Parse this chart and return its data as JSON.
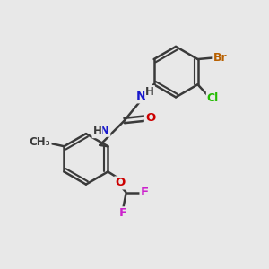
{
  "bg_color": "#e8e8e8",
  "bond_color": "#3a3a3a",
  "bond_width": 1.8,
  "atom_colors": {
    "Br": "#b86000",
    "Cl": "#22bb00",
    "N": "#1818cc",
    "O": "#cc0000",
    "F": "#cc22cc",
    "C": "#3a3a3a",
    "H": "#3a3a3a"
  },
  "font_size": 9.5
}
